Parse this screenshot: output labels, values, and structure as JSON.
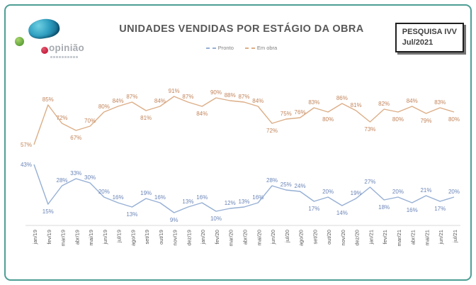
{
  "frame": {
    "border_color": "#4d9e94"
  },
  "logo": {
    "text": "opinião",
    "brand_teal": "#2e9ec0",
    "brand_green": "#6fae44",
    "brand_red": "#c81f3e"
  },
  "badge": {
    "line1": "PESQUISA IVV",
    "line2": "Jul/2021"
  },
  "chart_data": {
    "type": "line",
    "title": "UNIDADES VENDIDAS POR ESTÁGIO DA OBRA",
    "categories": [
      "jan/19",
      "fev/19",
      "mar/19",
      "abr/19",
      "mai/19",
      "jun/19",
      "jul/19",
      "ago/19",
      "set/19",
      "out/19",
      "nov/19",
      "dez/19",
      "jan/20",
      "fev/20",
      "mar/20",
      "abr/20",
      "mai/20",
      "jun/20",
      "jul/20",
      "ago/20",
      "set/20",
      "out/20",
      "nov/20",
      "dez/20",
      "jan/21",
      "fev/21",
      "mar/21",
      "abr/21",
      "mai/21",
      "jun/21",
      "jul/21"
    ],
    "series": [
      {
        "name": "Pronto",
        "line_color": "#96afd4",
        "label_color": "#6b85b8",
        "values": [
          43,
          15,
          28,
          33,
          30,
          20,
          16,
          13,
          19,
          16,
          9,
          13,
          16,
          10,
          12,
          13,
          16,
          28,
          25,
          24,
          17,
          20,
          14,
          19,
          27,
          18,
          20,
          16,
          21,
          17,
          20
        ]
      },
      {
        "name": "Em obra",
        "line_color": "#dcae87",
        "label_color": "#c2845a",
        "values": [
          57,
          85,
          72,
          67,
          70,
          80,
          84,
          87,
          81,
          84,
          91,
          87,
          84,
          90,
          88,
          87,
          84,
          72,
          75,
          76,
          83,
          80,
          86,
          81,
          73,
          82,
          80,
          84,
          79,
          83,
          80
        ]
      }
    ],
    "value_suffix": "%",
    "ylim": [
      0,
      100
    ],
    "grid": false,
    "legend_position": "top-center",
    "axis_color": "#d9d9d9",
    "tick_label_color": "#595959"
  }
}
